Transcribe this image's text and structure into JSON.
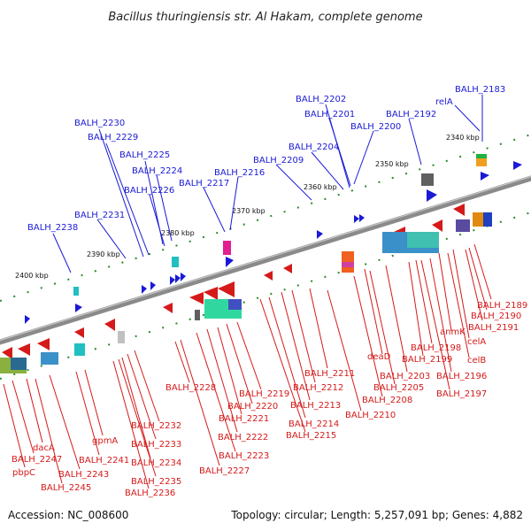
{
  "title": "Bacillus thuringiensis str. Al Hakam, complete genome",
  "footer": {
    "accession": "Accession: NC_008600",
    "summary": "Topology: circular; Length: 5,257,091 bp; Genes: 4,882"
  },
  "ticks": [
    "2340 kbp",
    "2350 kbp",
    "2360 kbp",
    "2370 kbp",
    "2380 kbp",
    "2390 kbp",
    "2400 kbp"
  ],
  "forward_labels": [
    "BALH_2183",
    "relA",
    "BALH_2202",
    "BALH_2201",
    "BALH_2192",
    "BALH_2200",
    "BALH_2204",
    "BALH_2209",
    "BALH_2230",
    "BALH_2229",
    "BALH_2225",
    "BALH_2224",
    "BALH_2226",
    "BALH_2216",
    "BALH_2217",
    "BALH_2231",
    "BALH_2238"
  ],
  "reverse_labels": [
    "BALH_2189",
    "BALH_2190",
    "BALH_2191",
    "anmK",
    "celA",
    "BALH_2198",
    "BALH_2199",
    "celB",
    "BALH_2196",
    "BALH_2197",
    "deaD",
    "BALH_2203",
    "BALH_2205",
    "BALH_2208",
    "BALH_2210",
    "BALH_2211",
    "BALH_2212",
    "BALH_2213",
    "BALH_2214",
    "BALH_2215",
    "BALH_2219",
    "BALH_2220",
    "BALH_2221",
    "BALH_2222",
    "BALH_2223",
    "BALH_2227",
    "BALH_2228",
    "BALH_2232",
    "BALH_2233",
    "BALH_2234",
    "BALH_2235",
    "BALH_2236",
    "gpmA",
    "BALH_2241",
    "dacA",
    "BALH_2243",
    "BALH_2245",
    "BALH_2247",
    "pbpC"
  ],
  "colors": {
    "forward": "#1a1ad6",
    "reverse": "#d51a1a",
    "backbone": "#888888",
    "tick": "#2a8a2a"
  }
}
